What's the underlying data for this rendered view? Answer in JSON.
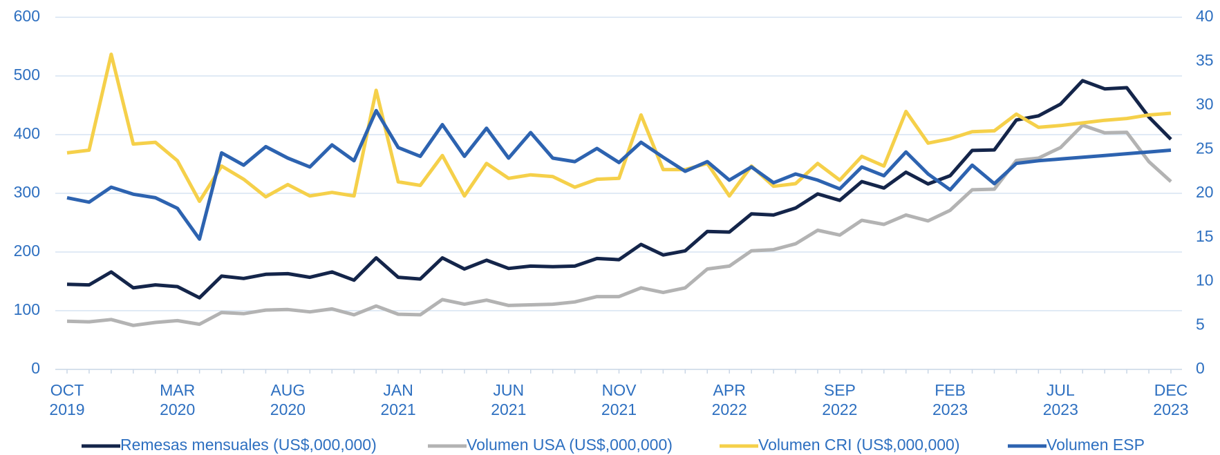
{
  "chart_data": {
    "type": "line",
    "categories": [
      "OCT 2019",
      null,
      null,
      null,
      null,
      "MAR 2020",
      null,
      null,
      null,
      null,
      "AUG 2020",
      null,
      null,
      null,
      null,
      "JAN 2021",
      null,
      null,
      null,
      null,
      "JUN 2021",
      null,
      null,
      null,
      null,
      "NOV 2021",
      null,
      null,
      null,
      null,
      "APR 2022",
      null,
      null,
      null,
      null,
      "SEP 2022",
      null,
      null,
      null,
      null,
      "FEB 2023",
      null,
      null,
      null,
      null,
      "JUL 2023",
      null,
      null,
      null,
      null,
      "DEC 2023"
    ],
    "series": [
      {
        "name": "Remesas mensuales (US$,000,000)",
        "color": "#14254a",
        "values": [
          145,
          144,
          166,
          139,
          144,
          141,
          122,
          159,
          155,
          162,
          163,
          157,
          166,
          152,
          190,
          157,
          154,
          190,
          171,
          186,
          172,
          176,
          175,
          176,
          189,
          187,
          213,
          195,
          202,
          235,
          234,
          265,
          263,
          275,
          299,
          288,
          320,
          309,
          336,
          316,
          330,
          373,
          374,
          425,
          432,
          452,
          492,
          478,
          480,
          430,
          392
        ]
      },
      {
        "name": "Volumen USA (US$,000,000)",
        "color": "#b3b3b3",
        "values": [
          82,
          81,
          85,
          75,
          80,
          83,
          77,
          97,
          95,
          101,
          102,
          98,
          103,
          93,
          108,
          94,
          93,
          119,
          111,
          118,
          109,
          110,
          111,
          115,
          124,
          124,
          139,
          131,
          139,
          171,
          176,
          202,
          204,
          214,
          237,
          229,
          254,
          247,
          263,
          253,
          271,
          306,
          307,
          356,
          360,
          378,
          416,
          403,
          404,
          354,
          320
        ]
      },
      {
        "name": "Volumen CRI (US$,000,000)",
        "color": "#f5d04a",
        "axis": "y2",
        "values": [
          24.6,
          24.9,
          35.8,
          25.6,
          25.8,
          23.7,
          19.1,
          23.1,
          21.6,
          19.6,
          21.0,
          19.7,
          20.1,
          19.7,
          31.7,
          21.3,
          20.9,
          24.3,
          19.7,
          23.4,
          21.7,
          22.1,
          21.9,
          20.7,
          21.6,
          21.7,
          28.9,
          22.7,
          22.7,
          23.4,
          19.7,
          23.1,
          20.8,
          21.1,
          23.4,
          21.5,
          24.2,
          23.1,
          29.3,
          25.7,
          26.2,
          27.0,
          27.1,
          29.0,
          27.5,
          27.7,
          28.0,
          28.3,
          28.5,
          28.9,
          29.1
        ]
      },
      {
        "name": "Volumen ESP",
        "color": "#2d63b0",
        "axis": "y2",
        "values": [
          19.5,
          19.0,
          20.7,
          19.9,
          19.5,
          18.3,
          14.8,
          24.6,
          23.2,
          25.3,
          24.0,
          23.0,
          25.5,
          23.7,
          29.4,
          25.2,
          24.2,
          27.8,
          24.2,
          27.4,
          24.0,
          26.9,
          24.0,
          23.6,
          25.1,
          23.5,
          25.8,
          24.1,
          22.5,
          23.6,
          21.5,
          23.0,
          21.2,
          22.2,
          21.5,
          20.5,
          23.0,
          22.0,
          24.7,
          22.2,
          20.4,
          23.2,
          21.1,
          23.4,
          23.7,
          23.9,
          24.1,
          24.3,
          24.5,
          24.7,
          24.9
        ]
      }
    ],
    "ylim": [
      0,
      600
    ],
    "yticks": [
      0,
      100,
      200,
      300,
      400,
      500,
      600
    ],
    "y2lim": [
      0,
      40
    ],
    "y2ticks": [
      0,
      5,
      10,
      15,
      20,
      25,
      30,
      35,
      40
    ],
    "grid": true
  }
}
